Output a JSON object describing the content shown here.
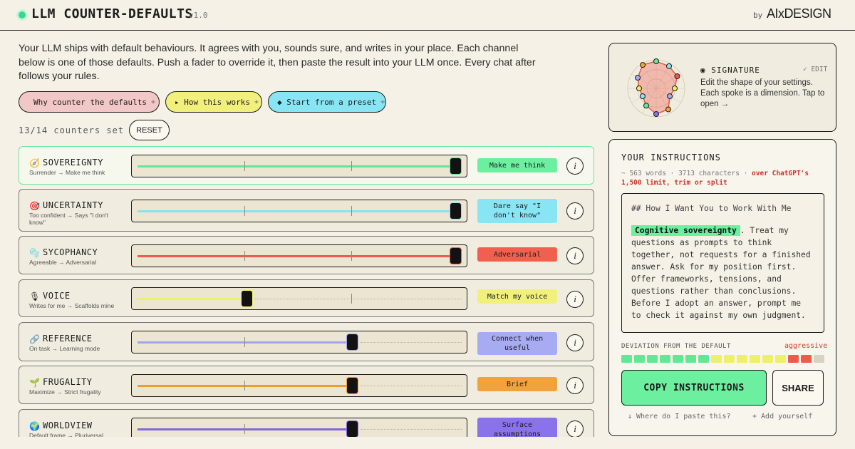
{
  "header": {
    "title": "LLM COUNTER-DEFAULTS",
    "version": "v1.0",
    "by": "by",
    "brand": "AIxDESIGN"
  },
  "intro": {
    "text": "Your LLM ships with default behaviours. It agrees with you, sounds sure, and writes in your place. Each channel below is one of those defaults. Push a fader to override it, then paste the result into your LLM once. Every chat after follows your rules."
  },
  "pills": {
    "why": "Why counter the defaults",
    "how": "▸ How this works",
    "preset": "◆ Start from a preset",
    "plus": "+"
  },
  "counters": {
    "status": "13/14 counters set",
    "reset": "RESET",
    "info": "i",
    "rows": [
      {
        "icon": "🧭",
        "name": "SOVEREIGNTY",
        "range": "Surrender → Make me think",
        "badge": "Make me think",
        "value": 1.0,
        "color": "#62e895",
        "badge_color": "#6cf0a0"
      },
      {
        "icon": "🎯",
        "name": "UNCERTAINTY",
        "range": "Too confident → Says \"I don't know\"",
        "badge": "Dare say \"I don't know\"",
        "value": 1.0,
        "color": "#86e1f6",
        "badge_color": "#88e6f4"
      },
      {
        "icon": "🫧",
        "name": "SYCOPHANCY",
        "range": "Agreeable → Adversarial",
        "badge": "Adversarial",
        "value": 1.0,
        "color": "#ef5b4b",
        "badge_color": "#f1604f"
      },
      {
        "icon": "🎙",
        "name": "VOICE",
        "range": "Writes for me → Scaffolds mine",
        "badge": "Match my voice",
        "value": 0.33,
        "color": "#eef06a",
        "badge_color": "#f1f07c"
      },
      {
        "icon": "🔗",
        "name": "REFERENCE",
        "range": "On task → Learning mode",
        "badge": "Connect when useful",
        "value": 0.67,
        "color": "#a0a4ef",
        "badge_color": "#a7abf2"
      },
      {
        "icon": "🌱",
        "name": "FRUGALITY",
        "range": "Maximize → Strict frugality",
        "badge": "Brief",
        "value": 0.67,
        "color": "#f19a2e",
        "badge_color": "#f2a23a"
      },
      {
        "icon": "🌍",
        "name": "WORLDVIEW",
        "range": "Default frame → Pluriversal",
        "badge": "Surface assumptions",
        "value": 0.67,
        "color": "#7f66e6",
        "badge_color": "#8a73ea"
      }
    ]
  },
  "signature": {
    "title": "◉ SIGNATURE",
    "edit": "✓ EDIT",
    "description": "Edit the shape of your settings. Each spoke is a dimension. Tap to open →"
  },
  "instructions": {
    "title": "YOUR INSTRUCTIONS",
    "stats": "~ 563 words · 3713 characters · ",
    "warning": "over ChatGPT's 1,500 limit, trim or split",
    "heading": "## How I Want You to Work With Me",
    "highlight": "Cognitive sovereignty",
    "body": ". Treat my questions as prompts to think together, not requests for a finished answer. Ask for my position first. Offer frameworks, tensions, and questions rather than conclusions. Before I adopt an answer, prompt me to check it against my own judgment.",
    "deviation_label": "DEVIATION FROM THE DEFAULT",
    "deviation_level": "aggressive",
    "deviation_segments": [
      "#62e895",
      "#62e895",
      "#62e895",
      "#62e895",
      "#62e895",
      "#62e895",
      "#62e895",
      "#eef06a",
      "#eef06a",
      "#eef06a",
      "#eef06a",
      "#eef06a",
      "#eef06a",
      "#ef5b4b",
      "#ef5b4b",
      "#d8d2c2"
    ],
    "copy": "COPY INSTRUCTIONS",
    "share": "SHARE",
    "where": "↓ Where do I paste this?",
    "add": "+ Add yourself"
  }
}
